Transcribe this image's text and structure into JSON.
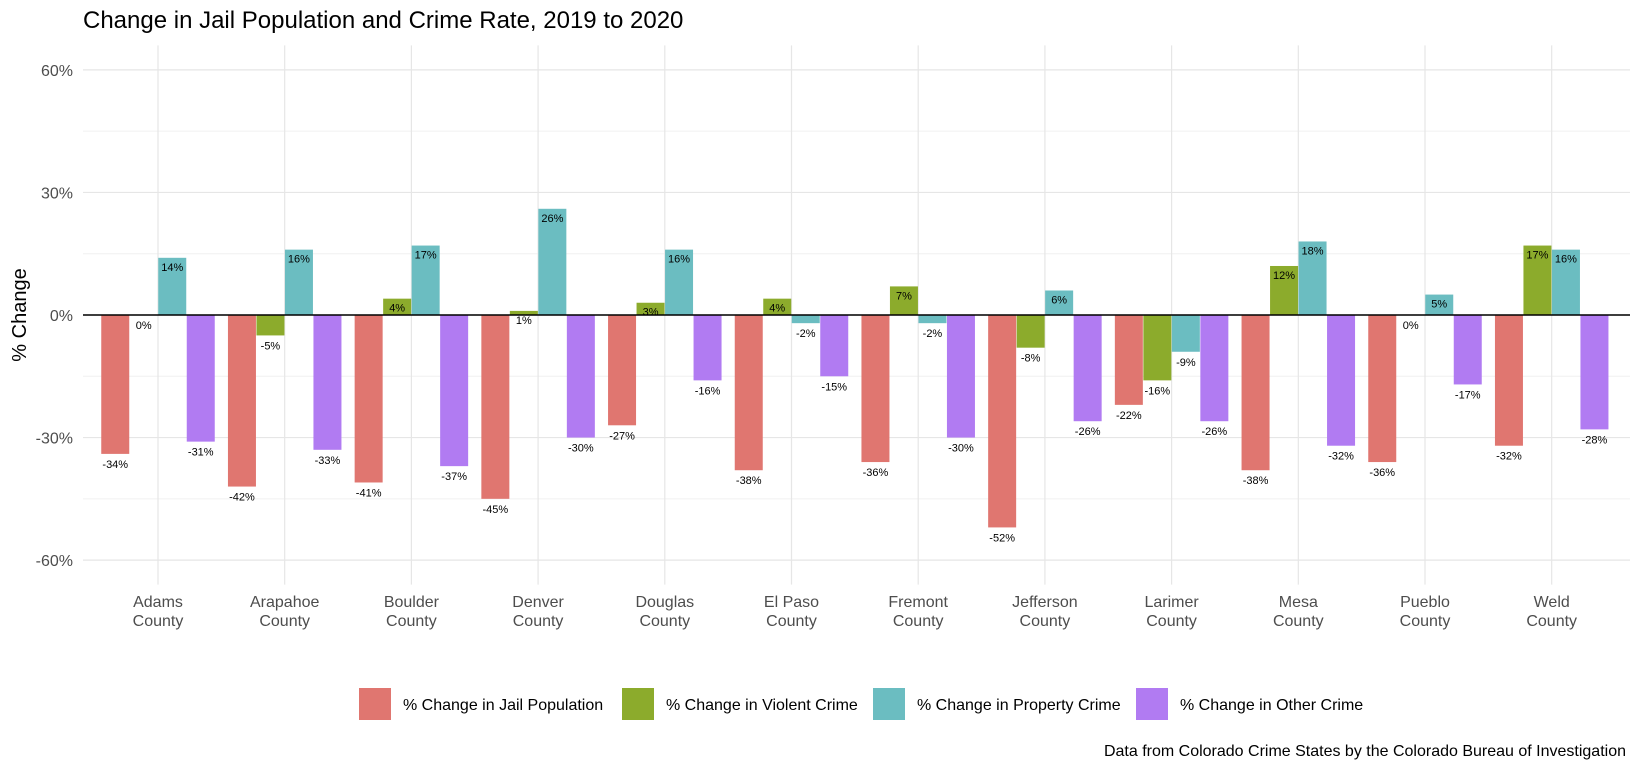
{
  "chart_data": {
    "type": "bar",
    "title": "Change in Jail Population and Crime Rate, 2019 to 2020",
    "xlabel": "",
    "ylabel": "% Change",
    "ylim": [
      -66,
      66
    ],
    "yticks": [
      -60,
      -30,
      0,
      30,
      60
    ],
    "ytick_labels": [
      "-60%",
      "-30%",
      "0%",
      "30%",
      "60%"
    ],
    "categories": [
      [
        "Adams",
        "County"
      ],
      [
        "Arapahoe",
        "County"
      ],
      [
        "Boulder",
        "County"
      ],
      [
        "Denver",
        "County"
      ],
      [
        "Douglas",
        "County"
      ],
      [
        "El Paso",
        "County"
      ],
      [
        "Fremont",
        "County"
      ],
      [
        "Jefferson",
        "County"
      ],
      [
        "Larimer",
        "County"
      ],
      [
        "Mesa",
        "County"
      ],
      [
        "Pueblo",
        "County"
      ],
      [
        "Weld",
        "County"
      ]
    ],
    "series": [
      {
        "name": "% Change in Jail Population",
        "color": "#E07670",
        "values": [
          -34,
          -42,
          -41,
          -45,
          -27,
          -38,
          -36,
          -52,
          -22,
          -38,
          -36,
          -32
        ],
        "labels": [
          "-34%",
          "-42%",
          "-41%",
          "-45%",
          "-27%",
          "-38%",
          "-36%",
          "-52%",
          "-22%",
          "-38%",
          "-36%",
          "-32%"
        ]
      },
      {
        "name": "% Change in Violent Crime",
        "color": "#8CAB2C",
        "values": [
          0,
          -5,
          4,
          1,
          3,
          4,
          7,
          -8,
          -16,
          12,
          0,
          17
        ],
        "labels": [
          "0%",
          "-5%",
          "4%",
          "1%",
          "3%",
          "4%",
          "7%",
          "-8%",
          "-16%",
          "12%",
          "0%",
          "17%"
        ]
      },
      {
        "name": "% Change in Property Crime",
        "color": "#6BBDC1",
        "values": [
          14,
          16,
          17,
          26,
          16,
          -2,
          -2,
          6,
          -9,
          18,
          5,
          16
        ],
        "labels": [
          "14%",
          "16%",
          "17%",
          "26%",
          "16%",
          "-2%",
          "-2%",
          "6%",
          "-9%",
          "18%",
          "5%",
          "16%"
        ]
      },
      {
        "name": "% Change in Other Crime",
        "color": "#B17BF2",
        "values": [
          -31,
          -33,
          -37,
          -30,
          -16,
          -15,
          -30,
          -26,
          -26,
          -32,
          -17,
          -28
        ],
        "labels": [
          "-31%",
          "-33%",
          "-37%",
          "-30%",
          "-16%",
          "-15%",
          "-30%",
          "-26%",
          "-26%",
          "-32%",
          "-17%",
          "-28%"
        ]
      }
    ],
    "grid": true,
    "legend_position": "bottom",
    "caption": "Data from Colorado Crime States by the Colorado Bureau of Investigation"
  }
}
